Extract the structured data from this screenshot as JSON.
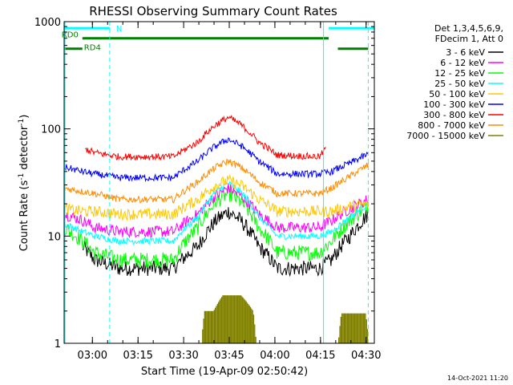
{
  "chart_data": {
    "type": "line",
    "title": "RHESSI Observing Summary Count Rates",
    "xlabel": "Start Time (19-Apr-09 02:50:42)",
    "ylabel_main": "Count Rate (s",
    "ylabel_sup1": "-1",
    "ylabel_mid": " detector",
    "ylabel_sup2": "-1",
    "ylabel_end": ")",
    "footer": "14-Oct-2021 11:20",
    "x_unit": "minutes after 02:50:42",
    "xlim": [
      0,
      102
    ],
    "ylim": [
      1,
      1000
    ],
    "y_scale": "log",
    "x_ticks": [
      {
        "label": "03:00",
        "value": 9.3
      },
      {
        "label": "03:15",
        "value": 24.3
      },
      {
        "label": "03:30",
        "value": 39.3
      },
      {
        "label": "03:45",
        "value": 54.3
      },
      {
        "label": "04:00",
        "value": 69.3
      },
      {
        "label": "04:15",
        "value": 84.3
      },
      {
        "label": "04:30",
        "value": 99.3
      }
    ],
    "y_ticks": [
      {
        "label": "1",
        "value": 1
      },
      {
        "label": "10",
        "value": 10
      },
      {
        "label": "100",
        "value": 100
      },
      {
        "label": "1000",
        "value": 1000
      }
    ],
    "legend_header": [
      "Det 1,3,4,5,6,9,",
      "FDecim 1, Att 0"
    ],
    "legend_position": "right",
    "series": [
      {
        "name": "3 - 6 keV",
        "color": "#000000",
        "x": [
          6,
          10,
          18,
          36,
          44,
          50,
          54,
          58,
          64,
          70,
          84,
          88,
          94,
          100
        ],
        "y": [
          8,
          6,
          5,
          5,
          8,
          14,
          17,
          14,
          8,
          5,
          5,
          6,
          10,
          16
        ]
      },
      {
        "name": "6 - 12 keV",
        "color": "#ff00ff",
        "x": [
          0,
          6,
          10,
          18,
          36,
          44,
          50,
          54,
          58,
          64,
          70,
          84,
          88,
          94,
          100
        ],
        "y": [
          16,
          14,
          12,
          11,
          11,
          16,
          24,
          28,
          24,
          16,
          12,
          12,
          14,
          18,
          22
        ]
      },
      {
        "name": "12 - 25 keV",
        "color": "#00ff00",
        "x": [
          0,
          6,
          10,
          18,
          36,
          44,
          50,
          54,
          58,
          64,
          70,
          84,
          88,
          94,
          100
        ],
        "y": [
          12,
          9,
          7,
          6,
          6,
          12,
          21,
          25,
          21,
          12,
          7,
          7,
          9,
          14,
          19
        ]
      },
      {
        "name": "25 - 50 keV",
        "color": "#00ffff",
        "x": [
          0,
          6,
          10,
          18,
          36,
          44,
          50,
          54,
          58,
          64,
          70,
          84,
          88,
          94,
          100
        ],
        "y": [
          13,
          11,
          10,
          9,
          9,
          15,
          26,
          31,
          26,
          15,
          10,
          10,
          11,
          15,
          20
        ]
      },
      {
        "name": "50 - 100 keV",
        "color": "#ffc800",
        "x": [
          0,
          6,
          10,
          18,
          36,
          44,
          50,
          54,
          58,
          64,
          70,
          84,
          88,
          94,
          100
        ],
        "y": [
          18,
          17,
          17,
          16,
          16,
          22,
          30,
          33,
          30,
          22,
          17,
          17,
          17,
          19,
          20
        ]
      },
      {
        "name": "100 - 300 keV",
        "color": "#0000ff",
        "x": [
          0,
          6,
          10,
          18,
          36,
          44,
          50,
          54,
          58,
          64,
          70,
          84,
          88,
          94,
          100
        ],
        "y": [
          44,
          40,
          38,
          35,
          35,
          50,
          70,
          80,
          70,
          50,
          38,
          38,
          40,
          48,
          58
        ]
      },
      {
        "name": "300 - 800 keV",
        "color": "#ff0000",
        "x": [
          7,
          10,
          18,
          36,
          44,
          50,
          54,
          58,
          64,
          70,
          84,
          86
        ],
        "y": [
          65,
          60,
          55,
          55,
          75,
          110,
          128,
          110,
          75,
          57,
          55,
          65
        ]
      },
      {
        "name": "800 - 7000 keV",
        "color": "#ff8c00",
        "x": [
          0,
          6,
          10,
          18,
          36,
          44,
          50,
          54,
          58,
          64,
          70,
          84,
          88,
          94,
          100
        ],
        "y": [
          28,
          26,
          25,
          22,
          22,
          32,
          44,
          50,
          44,
          32,
          25,
          25,
          28,
          36,
          46
        ]
      },
      {
        "name": "7000 - 15000 keV",
        "color": "#808000",
        "x": [
          45,
          46,
          49,
          52,
          58,
          62,
          63,
          90,
          91,
          99,
          100
        ],
        "y": [
          1,
          2,
          2,
          2.8,
          2.8,
          2,
          1,
          1,
          1.9,
          1.9,
          1
        ]
      }
    ],
    "annotations": [
      {
        "label": "N",
        "color": "#00ffff",
        "x_start": 0,
        "x_end": 15,
        "y": 870
      },
      {
        "label": "",
        "color": "#00ffff",
        "x_start": 87,
        "x_end": 102,
        "y": 870
      },
      {
        "label": "RD0",
        "color": "#008000",
        "x_start": 6,
        "x_end": 87,
        "y": 700
      },
      {
        "label": "RD4",
        "color": "#008000",
        "x_start": 0,
        "x_end": 6,
        "y": 560
      },
      {
        "label": "",
        "color": "#008000",
        "x_start": 90,
        "x_end": 100,
        "y": 560
      }
    ],
    "vertical_lines": [
      {
        "x": 0.3,
        "color": "#00ffff",
        "style": "solid"
      },
      {
        "x": 15,
        "color": "#00ffff",
        "style": "dashed"
      },
      {
        "x": 85.3,
        "color": "#00ffff",
        "style": "solid"
      },
      {
        "x": 100,
        "color": "#00ffff",
        "style": "dashed"
      }
    ]
  }
}
